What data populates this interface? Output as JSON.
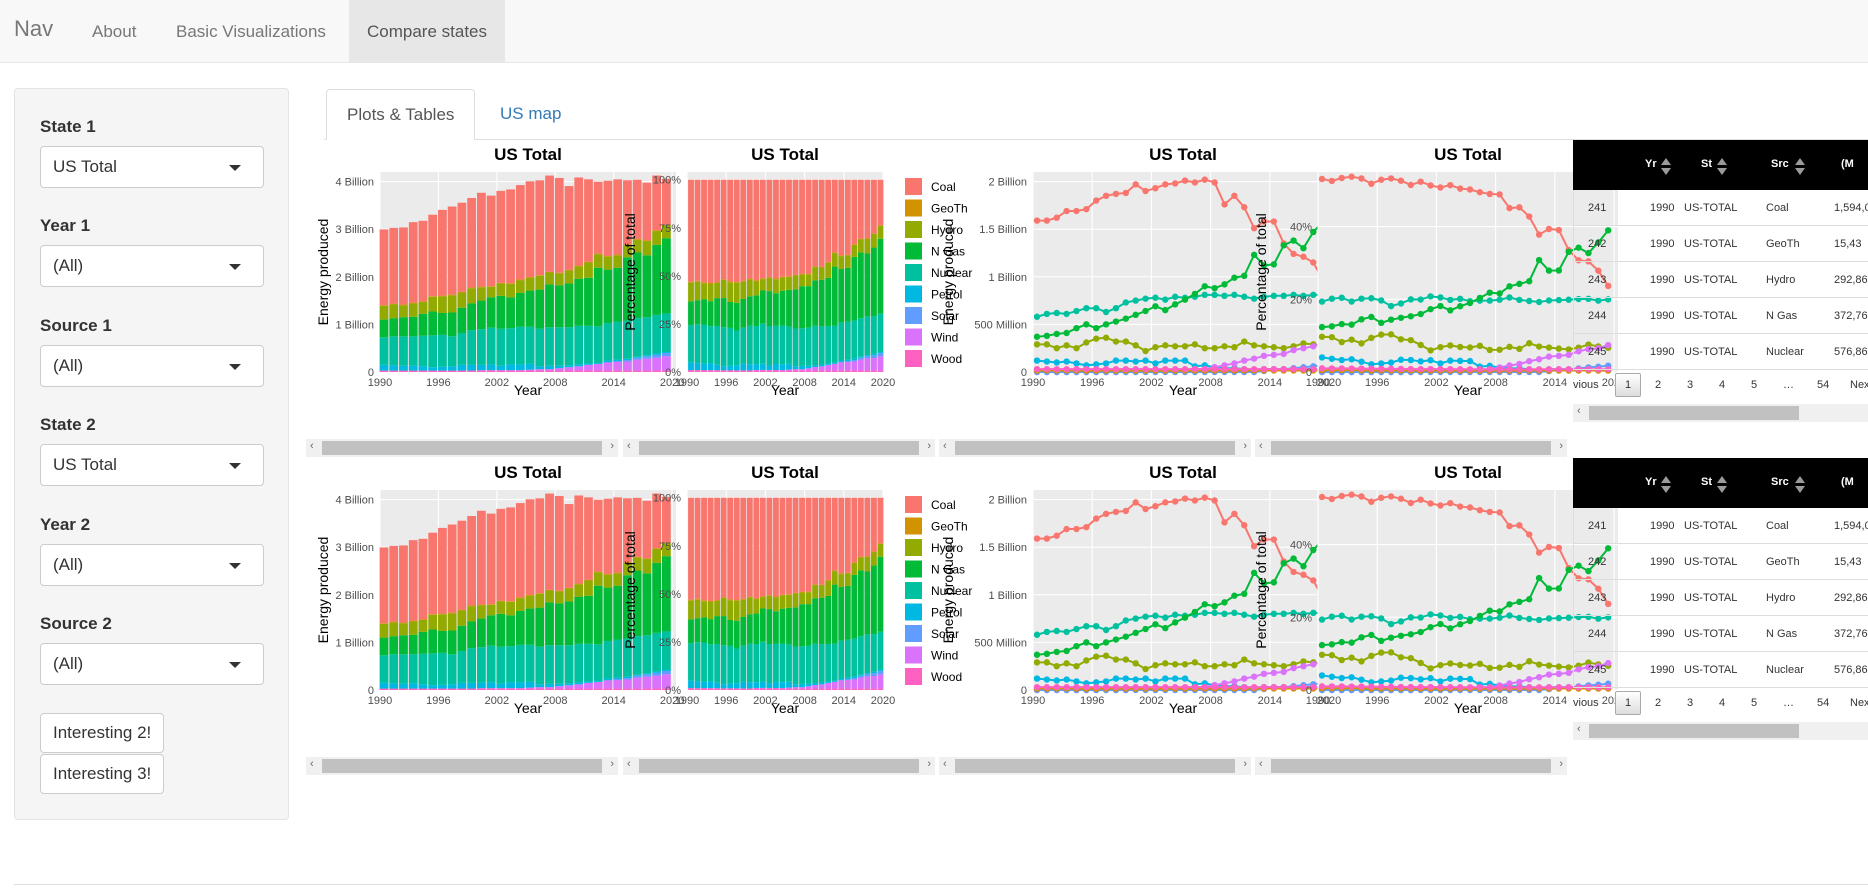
{
  "nav": {
    "brand": "Nav",
    "items": [
      "About",
      "Basic Visualizations",
      "Compare states"
    ],
    "active": "Compare states"
  },
  "sidebar": {
    "state1": {
      "label": "State 1",
      "value": "US Total"
    },
    "year1": {
      "label": "Year 1",
      "value": "(All)"
    },
    "source1": {
      "label": "Source 1",
      "value": "(All)"
    },
    "state2": {
      "label": "State 2",
      "value": "US Total"
    },
    "year2": {
      "label": "Year 2",
      "value": "(All)"
    },
    "source2": {
      "label": "Source 2",
      "value": "(All)"
    },
    "buttons": [
      "Interesting 2!",
      "Interesting 3!"
    ]
  },
  "tabs": [
    "Plots & Tables",
    "US map"
  ],
  "colors": {
    "Coal": "#F8766D",
    "GeoTh": "#D39200",
    "Hydro": "#93AA00",
    "N Gas": "#00BA38",
    "Nuclear": "#00C19F",
    "Petrol": "#00B9E3",
    "Solar": "#619CFF",
    "Wind": "#DB72FB",
    "Wood": "#FF61C3"
  },
  "chart_data": [
    {
      "type": "area",
      "title": "US Total",
      "xlabel": "Year",
      "ylabel": "Energy produced",
      "x": [
        1990,
        1991,
        1992,
        1993,
        1994,
        1995,
        1996,
        1997,
        1998,
        1999,
        2000,
        2001,
        2002,
        2003,
        2004,
        2005,
        2006,
        2007,
        2008,
        2009,
        2010,
        2011,
        2012,
        2013,
        2014,
        2015,
        2016,
        2017,
        2018,
        2019
      ],
      "xticks": [
        "1990",
        "1996",
        "2002",
        "2008",
        "2014",
        "2020"
      ],
      "yticks": [
        "0",
        "1 Billion",
        "2 Billion",
        "3 Billion",
        "4 Billion"
      ],
      "ylim": [
        0,
        4.2
      ],
      "unit": "billion",
      "series": [
        {
          "name": "Wood",
          "values": [
            0.03,
            0.03,
            0.03,
            0.03,
            0.03,
            0.03,
            0.03,
            0.03,
            0.03,
            0.03,
            0.03,
            0.03,
            0.03,
            0.03,
            0.03,
            0.03,
            0.03,
            0.03,
            0.03,
            0.03,
            0.03,
            0.03,
            0.03,
            0.03,
            0.03,
            0.03,
            0.03,
            0.03,
            0.03,
            0.03
          ]
        },
        {
          "name": "Wind",
          "values": [
            0.0,
            0.0,
            0.0,
            0.0,
            0.0,
            0.0,
            0.0,
            0.0,
            0.0,
            0.0,
            0.01,
            0.01,
            0.01,
            0.01,
            0.01,
            0.02,
            0.03,
            0.03,
            0.05,
            0.07,
            0.09,
            0.12,
            0.14,
            0.17,
            0.18,
            0.19,
            0.23,
            0.25,
            0.27,
            0.3
          ]
        },
        {
          "name": "Solar",
          "values": [
            0.0,
            0.0,
            0.0,
            0.0,
            0.0,
            0.0,
            0.0,
            0.0,
            0.0,
            0.0,
            0.0,
            0.0,
            0.0,
            0.0,
            0.0,
            0.0,
            0.0,
            0.0,
            0.0,
            0.0,
            0.0,
            0.0,
            0.0,
            0.01,
            0.02,
            0.03,
            0.04,
            0.05,
            0.06,
            0.07
          ]
        },
        {
          "name": "Petrol",
          "values": [
            0.12,
            0.11,
            0.1,
            0.11,
            0.09,
            0.07,
            0.08,
            0.09,
            0.12,
            0.12,
            0.11,
            0.12,
            0.09,
            0.12,
            0.12,
            0.12,
            0.06,
            0.07,
            0.05,
            0.04,
            0.04,
            0.03,
            0.02,
            0.03,
            0.03,
            0.03,
            0.02,
            0.02,
            0.03,
            0.02
          ]
        },
        {
          "name": "Nuclear",
          "values": [
            0.58,
            0.61,
            0.62,
            0.61,
            0.64,
            0.67,
            0.67,
            0.63,
            0.67,
            0.73,
            0.75,
            0.77,
            0.78,
            0.76,
            0.79,
            0.78,
            0.79,
            0.81,
            0.81,
            0.8,
            0.81,
            0.79,
            0.77,
            0.79,
            0.8,
            0.8,
            0.81,
            0.8,
            0.81,
            0.81
          ]
        },
        {
          "name": "N Gas",
          "values": [
            0.37,
            0.38,
            0.4,
            0.41,
            0.46,
            0.5,
            0.46,
            0.5,
            0.53,
            0.56,
            0.6,
            0.64,
            0.69,
            0.65,
            0.71,
            0.76,
            0.82,
            0.9,
            0.88,
            0.92,
            0.99,
            1.01,
            1.23,
            1.12,
            1.13,
            1.33,
            1.38,
            1.3,
            1.47,
            1.58
          ]
        },
        {
          "name": "Hydro",
          "values": [
            0.29,
            0.29,
            0.25,
            0.28,
            0.25,
            0.31,
            0.35,
            0.36,
            0.32,
            0.32,
            0.28,
            0.22,
            0.26,
            0.28,
            0.27,
            0.27,
            0.29,
            0.25,
            0.25,
            0.27,
            0.26,
            0.32,
            0.28,
            0.27,
            0.26,
            0.25,
            0.27,
            0.3,
            0.29,
            0.27
          ]
        },
        {
          "name": "GeoTh",
          "values": [
            0.015,
            0.016,
            0.016,
            0.017,
            0.015,
            0.013,
            0.014,
            0.015,
            0.015,
            0.015,
            0.014,
            0.014,
            0.014,
            0.014,
            0.015,
            0.015,
            0.015,
            0.015,
            0.015,
            0.015,
            0.015,
            0.016,
            0.016,
            0.016,
            0.016,
            0.016,
            0.016,
            0.016,
            0.016,
            0.016
          ]
        },
        {
          "name": "Coal",
          "values": [
            1.59,
            1.59,
            1.62,
            1.69,
            1.69,
            1.71,
            1.8,
            1.85,
            1.87,
            1.88,
            1.97,
            1.9,
            1.93,
            1.97,
            1.98,
            2.01,
            1.99,
            2.02,
            1.99,
            1.76,
            1.85,
            1.73,
            1.51,
            1.58,
            1.58,
            1.35,
            1.24,
            1.21,
            1.15,
            0.96
          ]
        }
      ]
    },
    {
      "type": "area",
      "title": "US Total",
      "xlabel": "Year",
      "ylabel": "Percentage of total",
      "stacked_percent": true,
      "xticks": [
        "1990",
        "1996",
        "2002",
        "2008",
        "2014",
        "2020"
      ],
      "yticks": [
        "0%",
        "25%",
        "50%",
        "75%",
        "100%"
      ],
      "legend": [
        "Coal",
        "GeoTh",
        "Hydro",
        "N Gas",
        "Nuclear",
        "Petrol",
        "Solar",
        "Wind",
        "Wood"
      ],
      "legend_position": "right"
    },
    {
      "type": "line",
      "title": "US Total",
      "xlabel": "Year",
      "ylabel": "Energy produced",
      "xticks": [
        "1990",
        "1996",
        "2002",
        "2008",
        "2014",
        "2020"
      ],
      "yticks": [
        "0",
        "500 Million",
        "1 Billion",
        "1.5 Billion",
        "2 Billion"
      ],
      "ylim": [
        0,
        2.1
      ]
    },
    {
      "type": "line",
      "title": "US Total",
      "xlabel": "Year",
      "ylabel": "Percentage of total",
      "xticks": [
        "1990",
        "1996",
        "2002",
        "2008",
        "2014",
        "2020"
      ],
      "yticks": [
        "0",
        "20%",
        "40%"
      ],
      "ylim": [
        0,
        55
      ]
    }
  ],
  "table": {
    "columns": [
      "Yr",
      "St",
      "Src",
      "(M"
    ],
    "rows": [
      [
        "241",
        "1990",
        "US-TOTAL",
        "Coal",
        "1,594,0"
      ],
      [
        "242",
        "1990",
        "US-TOTAL",
        "GeoTh",
        "15,43"
      ],
      [
        "243",
        "1990",
        "US-TOTAL",
        "Hydro",
        "292,86"
      ],
      [
        "244",
        "1990",
        "US-TOTAL",
        "N Gas",
        "372,76"
      ],
      [
        "245",
        "1990",
        "US-TOTAL",
        "Nuclear",
        "576,86"
      ]
    ],
    "pager": {
      "previous": "vious",
      "pages": [
        "1",
        "2",
        "3",
        "4",
        "5",
        "…",
        "54"
      ],
      "next": "Nex",
      "current": "1"
    }
  }
}
